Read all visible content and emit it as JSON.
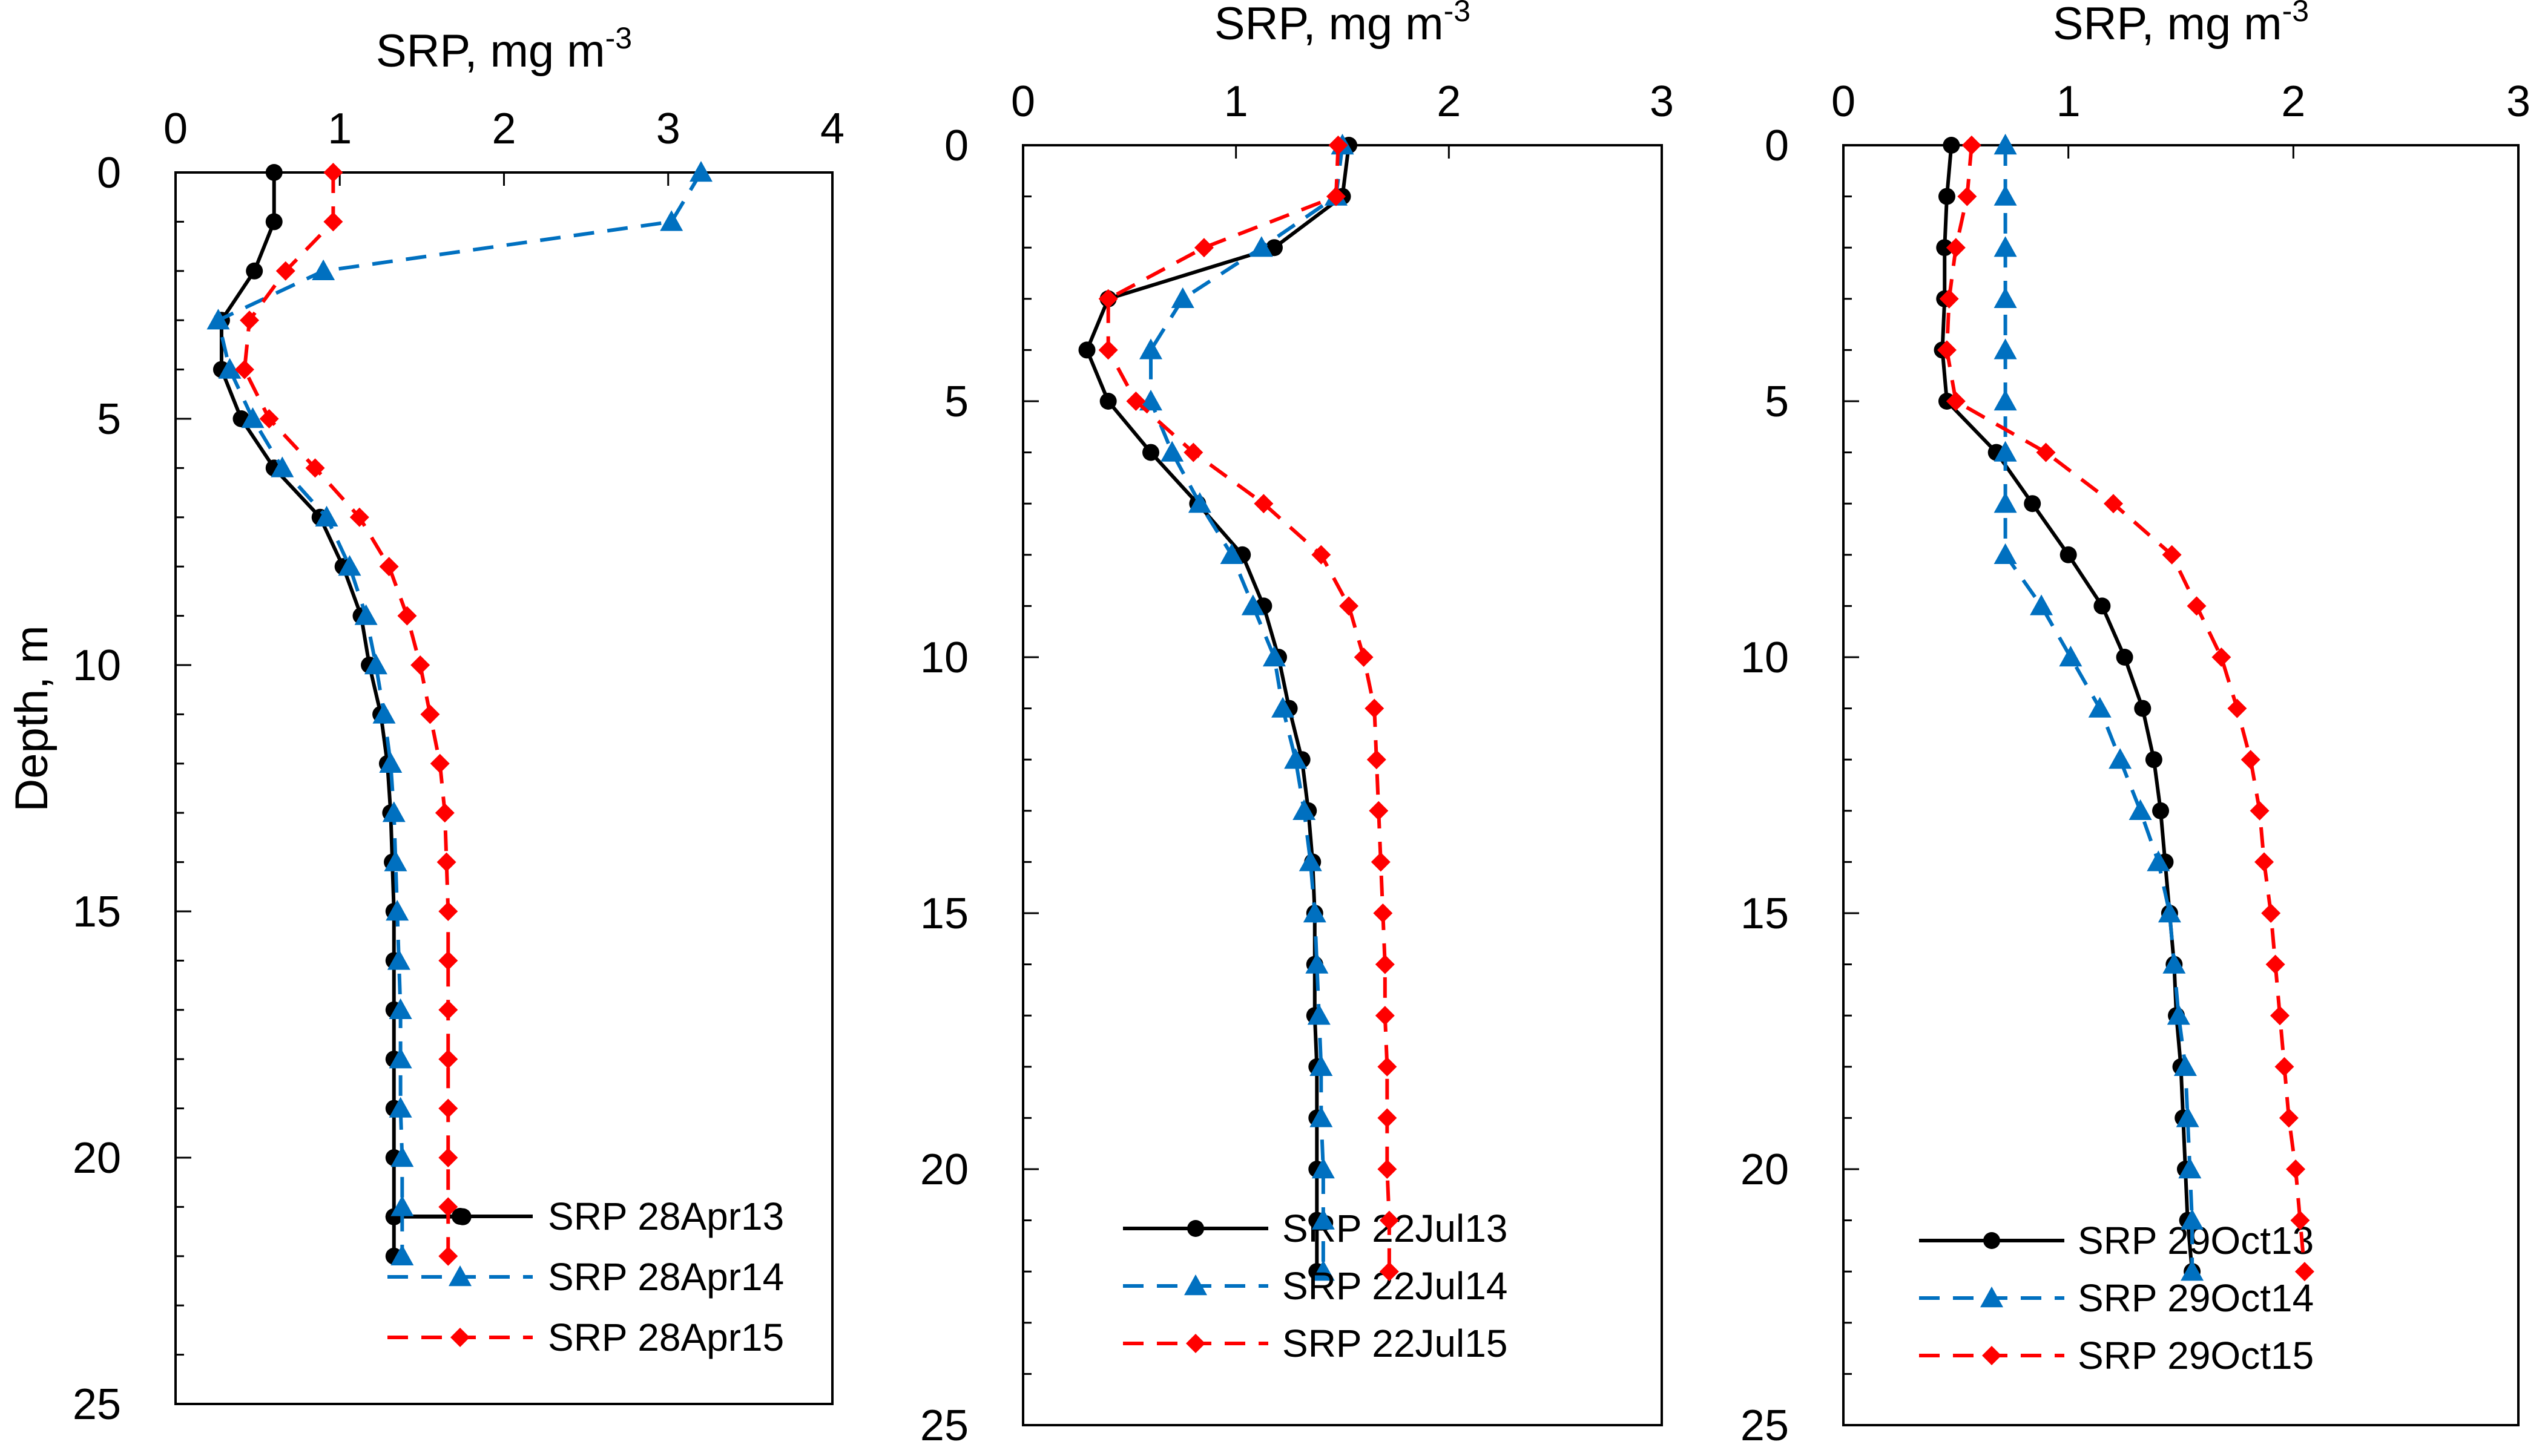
{
  "chart_data": [
    {
      "type": "line",
      "panel": "left",
      "xlabel_main": "SRP, mg m",
      "xlabel_sup": "-3",
      "ylabel": "Depth, m",
      "xlim": [
        0,
        4
      ],
      "ylim": [
        0,
        25
      ],
      "xticks": [
        "0",
        "1",
        "2",
        "3",
        "4"
      ],
      "yticks": [
        "0",
        "5",
        "10",
        "15",
        "20",
        "25"
      ],
      "series": [
        {
          "name": "SRP 28Apr13",
          "color": "#000000",
          "style": "solid",
          "marker": "circle",
          "x": [
            0.6,
            0.6,
            0.48,
            0.28,
            0.28,
            0.4,
            0.6,
            0.88,
            1.02,
            1.13,
            1.18,
            1.25,
            1.29,
            1.31,
            1.32,
            1.33,
            1.33,
            1.33,
            1.33,
            1.33,
            1.33,
            1.33,
            1.75,
            1.33,
            1.33
          ],
          "y": [
            0,
            1,
            2,
            3,
            4,
            5,
            6,
            7,
            8,
            9,
            10,
            11,
            12,
            13,
            14,
            15,
            16,
            17,
            18,
            19,
            20,
            21.2,
            21.2,
            21.2,
            22
          ]
        },
        {
          "name": "SRP 28Apr14",
          "color": "#0070C0",
          "style": "dashed",
          "marker": "triangle",
          "x": [
            3.2,
            3.02,
            0.9,
            0.26,
            0.33,
            0.47,
            0.65,
            0.92,
            1.06,
            1.16,
            1.22,
            1.27,
            1.31,
            1.33,
            1.34,
            1.35,
            1.36,
            1.37,
            1.37,
            1.37,
            1.38,
            1.38,
            1.38
          ],
          "y": [
            0,
            1,
            2,
            3,
            4,
            5,
            6,
            7,
            8,
            9,
            10,
            11,
            12,
            13,
            14,
            15,
            16,
            17,
            18,
            19,
            20,
            21,
            22
          ]
        },
        {
          "name": "SRP 28Apr15",
          "color": "#FF0000",
          "style": "dashed",
          "marker": "diamond",
          "x": [
            0.96,
            0.96,
            0.67,
            0.45,
            0.42,
            0.57,
            0.85,
            1.12,
            1.3,
            1.41,
            1.49,
            1.55,
            1.61,
            1.64,
            1.65,
            1.66,
            1.66,
            1.66,
            1.66,
            1.66,
            1.66,
            1.66,
            1.66
          ],
          "y": [
            0,
            1,
            2,
            3,
            4,
            5,
            6,
            7,
            8,
            9,
            10,
            11,
            12,
            13,
            14,
            15,
            16,
            17,
            18,
            19,
            20,
            21,
            22
          ]
        }
      ]
    },
    {
      "type": "line",
      "panel": "middle",
      "xlabel_main": "SRP, mg m",
      "xlabel_sup": "-3",
      "xlim": [
        0,
        3
      ],
      "ylim": [
        0,
        25
      ],
      "xticks": [
        "0",
        "1",
        "2",
        "3"
      ],
      "yticks": [
        "0",
        "5",
        "10",
        "15",
        "20",
        "25"
      ],
      "series": [
        {
          "name": "SRP 22Jul13",
          "color": "#000000",
          "style": "solid",
          "marker": "circle",
          "x": [
            1.53,
            1.5,
            1.18,
            0.4,
            0.3,
            0.4,
            0.6,
            0.82,
            1.03,
            1.13,
            1.2,
            1.25,
            1.31,
            1.34,
            1.36,
            1.37,
            1.37,
            1.37,
            1.38,
            1.38,
            1.38,
            1.38,
            1.38
          ],
          "y": [
            0,
            1,
            2,
            3,
            4,
            5,
            6,
            7,
            8,
            9,
            10,
            11,
            12,
            13,
            14,
            15,
            16,
            17,
            18,
            19,
            20,
            21,
            22
          ]
        },
        {
          "name": "SRP 22Jul14",
          "color": "#0070C0",
          "style": "dashed",
          "marker": "triangle",
          "x": [
            1.5,
            1.47,
            1.12,
            0.75,
            0.6,
            0.6,
            0.7,
            0.83,
            0.98,
            1.08,
            1.18,
            1.22,
            1.28,
            1.32,
            1.35,
            1.37,
            1.38,
            1.39,
            1.4,
            1.4,
            1.41,
            1.41,
            1.41
          ],
          "y": [
            0,
            1,
            2,
            3,
            4,
            5,
            6,
            7,
            8,
            9,
            10,
            11,
            12,
            13,
            14,
            15,
            16,
            17,
            18,
            19,
            20,
            21,
            22
          ]
        },
        {
          "name": "SRP 22Jul15",
          "color": "#FF0000",
          "style": "dashed",
          "marker": "diamond",
          "x": [
            1.48,
            1.47,
            0.85,
            0.4,
            0.4,
            0.53,
            0.8,
            1.13,
            1.4,
            1.53,
            1.6,
            1.65,
            1.66,
            1.67,
            1.68,
            1.69,
            1.7,
            1.7,
            1.71,
            1.71,
            1.71,
            1.72,
            1.72
          ],
          "y": [
            0,
            1,
            2,
            3,
            4,
            5,
            6,
            7,
            8,
            9,
            10,
            11,
            12,
            13,
            14,
            15,
            16,
            17,
            18,
            19,
            20,
            21,
            22
          ]
        }
      ]
    },
    {
      "type": "line",
      "panel": "right",
      "xlabel_main": "SRP, mg m",
      "xlabel_sup": "-3",
      "xlim": [
        0,
        3
      ],
      "ylim": [
        0,
        25
      ],
      "xticks": [
        "0",
        "1",
        "2",
        "3"
      ],
      "yticks": [
        "0",
        "5",
        "10",
        "15",
        "20",
        "25"
      ],
      "series": [
        {
          "name": "SRP 29Oct13",
          "color": "#000000",
          "style": "solid",
          "marker": "circle",
          "x": [
            0.48,
            0.46,
            0.45,
            0.45,
            0.44,
            0.46,
            0.68,
            0.84,
            1.0,
            1.15,
            1.25,
            1.33,
            1.38,
            1.41,
            1.43,
            1.45,
            1.47,
            1.48,
            1.5,
            1.51,
            1.52,
            1.53,
            1.55
          ],
          "y": [
            0,
            1,
            2,
            3,
            4,
            5,
            6,
            7,
            8,
            9,
            10,
            11,
            12,
            13,
            14,
            15,
            16,
            17,
            18,
            19,
            20,
            21,
            22
          ]
        },
        {
          "name": "SRP 29Oct14",
          "color": "#0070C0",
          "style": "dashed",
          "marker": "triangle",
          "x": [
            0.72,
            0.72,
            0.72,
            0.72,
            0.72,
            0.72,
            0.72,
            0.72,
            0.72,
            0.88,
            1.01,
            1.14,
            1.23,
            1.32,
            1.4,
            1.45,
            1.47,
            1.49,
            1.52,
            1.53,
            1.54,
            1.55,
            1.55
          ],
          "y": [
            0,
            1,
            2,
            3,
            4,
            5,
            6,
            7,
            8,
            9,
            10,
            11,
            12,
            13,
            14,
            15,
            16,
            17,
            18,
            19,
            20,
            21,
            22
          ]
        },
        {
          "name": "SRP 29Oct15",
          "color": "#FF0000",
          "style": "dashed",
          "marker": "diamond",
          "x": [
            0.57,
            0.55,
            0.5,
            0.47,
            0.46,
            0.5,
            0.9,
            1.2,
            1.46,
            1.57,
            1.68,
            1.75,
            1.81,
            1.85,
            1.87,
            1.9,
            1.92,
            1.94,
            1.96,
            1.98,
            2.01,
            2.03,
            2.05
          ],
          "y": [
            0,
            1,
            2,
            3,
            4,
            5,
            6,
            7,
            8,
            9,
            10,
            11,
            12,
            13,
            14,
            15,
            16,
            17,
            18,
            19,
            20,
            21,
            22
          ]
        }
      ]
    }
  ]
}
